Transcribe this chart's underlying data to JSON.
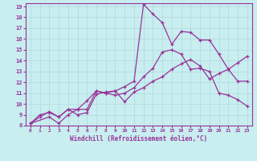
{
  "xlabel": "Windchill (Refroidissement éolien,°C)",
  "bg_color": "#c8eef0",
  "grid_color": "#b0d8dc",
  "line_color": "#993399",
  "xlim": [
    -0.5,
    23.5
  ],
  "ylim": [
    8,
    19.3
  ],
  "xticks": [
    0,
    1,
    2,
    3,
    4,
    5,
    6,
    7,
    8,
    9,
    10,
    11,
    12,
    13,
    14,
    15,
    16,
    17,
    18,
    19,
    20,
    21,
    22,
    23
  ],
  "yticks": [
    8,
    9,
    10,
    11,
    12,
    13,
    14,
    15,
    16,
    17,
    18,
    19
  ],
  "line1_x": [
    0,
    1,
    2,
    3,
    4,
    5,
    6,
    7,
    8,
    9,
    10,
    11,
    12,
    13,
    14,
    15,
    16,
    17,
    18,
    19,
    20,
    21,
    22,
    23
  ],
  "line1_y": [
    8.2,
    9.0,
    9.2,
    8.8,
    9.5,
    9.0,
    9.2,
    10.9,
    11.1,
    11.2,
    11.6,
    12.1,
    19.2,
    18.3,
    17.5,
    15.5,
    16.7,
    16.6,
    15.9,
    15.9,
    14.6,
    13.2,
    12.1,
    12.1
  ],
  "line2_x": [
    0,
    1,
    2,
    3,
    4,
    5,
    6,
    7,
    8,
    9,
    10,
    11,
    12,
    13,
    14,
    15,
    16,
    17,
    18,
    19,
    20,
    21,
    22,
    23
  ],
  "line2_y": [
    8.2,
    8.8,
    9.3,
    8.8,
    9.5,
    9.5,
    10.3,
    11.2,
    11.0,
    10.8,
    11.0,
    11.5,
    12.5,
    13.3,
    14.8,
    15.0,
    14.6,
    13.2,
    13.3,
    13.0,
    11.0,
    10.8,
    10.4,
    9.8
  ],
  "line3_x": [
    0,
    2,
    3,
    4,
    5,
    6,
    7,
    8,
    9,
    10,
    11,
    12,
    13,
    14,
    15,
    16,
    17,
    18,
    19,
    20,
    21,
    22,
    23
  ],
  "line3_y": [
    8.2,
    8.8,
    8.2,
    9.0,
    9.5,
    9.5,
    11.2,
    11.0,
    11.2,
    10.2,
    11.1,
    11.5,
    12.1,
    12.5,
    13.2,
    13.7,
    14.1,
    13.5,
    12.3,
    12.8,
    13.2,
    13.8,
    14.4
  ]
}
